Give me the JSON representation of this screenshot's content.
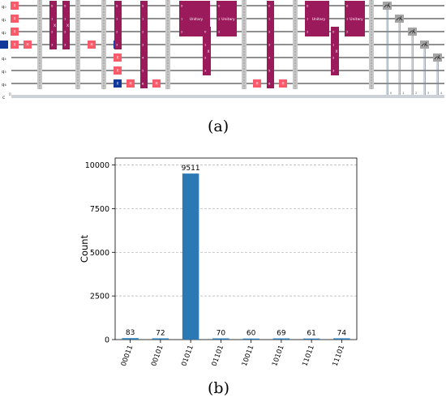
{
  "panel_a": {
    "caption": "(a)",
    "qubit_labels": [
      "q₀",
      "q₁",
      "q₂",
      "q₃",
      "q₄",
      "q₅",
      "q₆"
    ],
    "classical_label": "c",
    "classical_start": "0",
    "gate_labels": {
      "unitary": "Unitary",
      "hadamard": "H",
      "x": "X",
      "measure_digits": [
        "0",
        "1",
        "2",
        "3",
        "4"
      ]
    }
  },
  "panel_b": {
    "caption": "(b)"
  },
  "chart_data": {
    "type": "bar",
    "ylabel": "Count",
    "xlabel": "",
    "categories": [
      "00011",
      "00101",
      "01011",
      "01101",
      "10011",
      "10101",
      "11011",
      "11101"
    ],
    "values": [
      83,
      72,
      9511,
      70,
      60,
      69,
      61,
      74
    ],
    "yticks": [
      0,
      2500,
      5000,
      7500,
      10000
    ],
    "ylim": [
      0,
      10400
    ],
    "grid": "horizontal dashed",
    "bar_color": "#2a79b5"
  },
  "colors": {
    "gate_pink": "#fa5a6a",
    "gate_magenta": "#9a1a5b",
    "gate_blue": "#10389a",
    "barrier": "#c8c8c8",
    "measure_gray": "#a4a4a4",
    "classical_wire": "#778899"
  }
}
